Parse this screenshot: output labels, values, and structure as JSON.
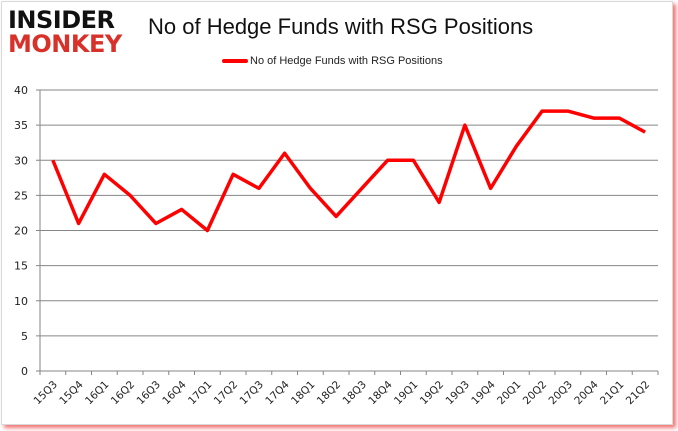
{
  "logo": {
    "line1": "INSIDER",
    "line2": "MONKEY"
  },
  "chart_data": {
    "type": "line",
    "title": "No of Hedge Funds with RSG Positions",
    "xlabel": "",
    "ylabel": "",
    "categories": [
      "15Q3",
      "15Q4",
      "16Q1",
      "16Q2",
      "16Q3",
      "16Q4",
      "17Q1",
      "17Q2",
      "17Q3",
      "17Q4",
      "18Q1",
      "18Q2",
      "18Q3",
      "18Q4",
      "19Q1",
      "19Q2",
      "19Q3",
      "19Q4",
      "20Q1",
      "20Q2",
      "20Q3",
      "20Q4",
      "21Q1",
      "21Q2"
    ],
    "series": [
      {
        "name": "No of Hedge Funds with RSG Positions",
        "color": "#ff0000",
        "values": [
          30,
          21,
          28,
          25,
          21,
          23,
          20,
          28,
          26,
          31,
          26,
          22,
          26,
          30,
          30,
          24,
          35,
          26,
          32,
          37,
          37,
          36,
          36,
          34
        ]
      }
    ],
    "ylim": [
      0,
      40
    ],
    "yticks": [
      0,
      5,
      10,
      15,
      20,
      25,
      30,
      35,
      40
    ],
    "grid": true,
    "legend_position": "top"
  }
}
